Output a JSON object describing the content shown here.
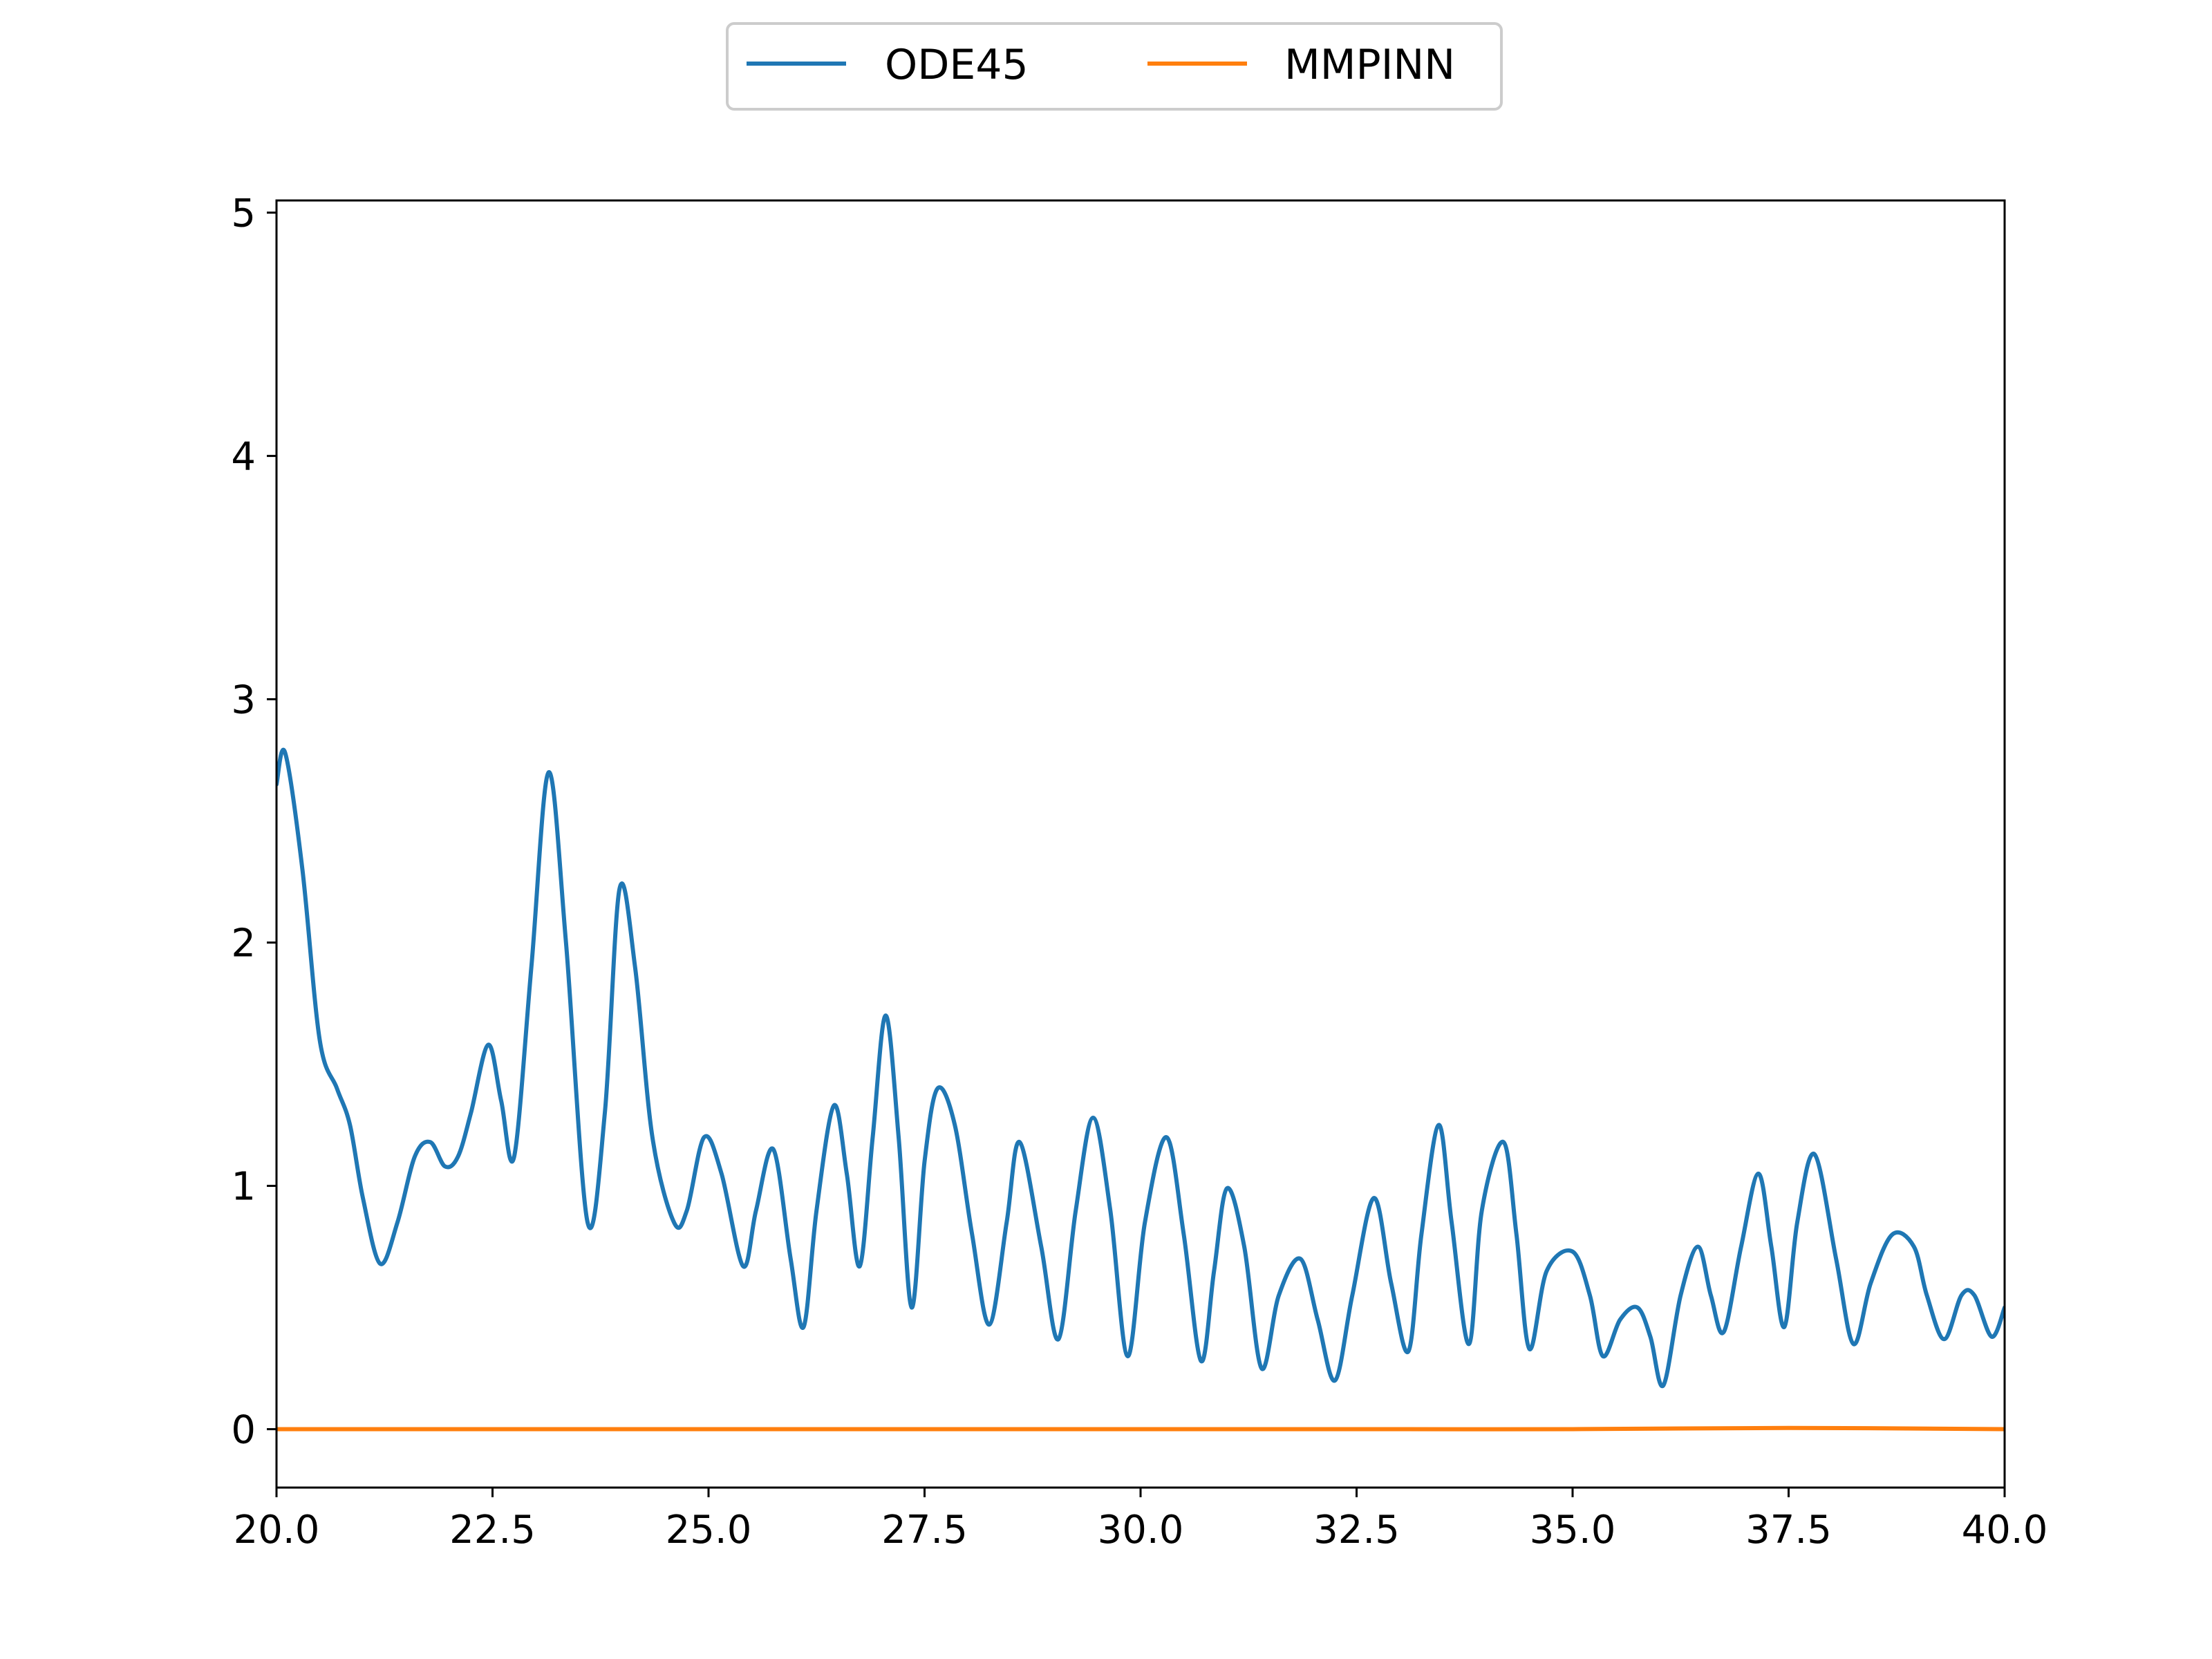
{
  "chart_data": {
    "type": "line",
    "title": "",
    "xlabel": "",
    "ylabel": "",
    "xlim": [
      20.0,
      40.0
    ],
    "ylim": [
      -0.24,
      5.05
    ],
    "x_ticks": [
      20.0,
      22.5,
      25.0,
      27.5,
      30.0,
      32.5,
      35.0,
      37.5,
      40.0
    ],
    "x_tick_labels": [
      "20.0",
      "22.5",
      "25.0",
      "27.5",
      "30.0",
      "32.5",
      "35.0",
      "37.5",
      "40.0"
    ],
    "y_ticks": [
      0,
      1,
      2,
      3,
      4,
      5
    ],
    "y_tick_labels": [
      "0",
      "1",
      "2",
      "3",
      "4",
      "5"
    ],
    "grid": false,
    "legend_position": "top-center-outside",
    "series": [
      {
        "name": "ODE45",
        "color": "#1f77b4",
        "x": [
          20.0,
          20.1,
          20.3,
          20.5,
          20.7,
          20.85,
          21.0,
          21.2,
          21.4,
          21.6,
          21.78,
          21.95,
          22.1,
          22.25,
          22.45,
          22.6,
          22.75,
          22.95,
          23.15,
          23.35,
          23.6,
          23.8,
          23.97,
          24.15,
          24.35,
          24.6,
          24.75,
          24.95,
          25.15,
          25.4,
          25.55,
          25.75,
          25.95,
          26.1,
          26.25,
          26.45,
          26.6,
          26.75,
          26.9,
          27.05,
          27.2,
          27.35,
          27.5,
          27.65,
          27.85,
          28.05,
          28.25,
          28.45,
          28.6,
          28.85,
          29.05,
          29.25,
          29.45,
          29.65,
          29.85,
          30.05,
          30.3,
          30.5,
          30.7,
          30.85,
          31.0,
          31.2,
          31.4,
          31.6,
          31.85,
          32.05,
          32.25,
          32.45,
          32.7,
          32.9,
          33.1,
          33.25,
          33.45,
          33.6,
          33.8,
          33.95,
          34.2,
          34.35,
          34.5,
          34.7,
          35.0,
          35.2,
          35.35,
          35.55,
          35.75,
          35.9,
          36.05,
          36.25,
          36.45,
          36.6,
          36.75,
          36.95,
          37.15,
          37.3,
          37.45,
          37.6,
          37.8,
          38.05,
          38.25,
          38.45,
          38.7,
          38.95,
          39.1,
          39.3,
          39.5,
          39.65,
          39.85,
          40.0
        ],
        "y": [
          2.65,
          2.78,
          2.3,
          1.6,
          1.4,
          1.25,
          0.95,
          0.68,
          0.85,
          1.12,
          1.18,
          1.08,
          1.12,
          1.3,
          1.58,
          1.35,
          1.12,
          1.9,
          2.7,
          2.0,
          0.85,
          1.3,
          2.22,
          1.9,
          1.2,
          0.85,
          0.9,
          1.2,
          1.05,
          0.67,
          0.9,
          1.15,
          0.7,
          0.42,
          0.9,
          1.33,
          1.05,
          0.67,
          1.2,
          1.7,
          1.2,
          0.5,
          1.1,
          1.4,
          1.25,
          0.8,
          0.43,
          0.85,
          1.18,
          0.75,
          0.37,
          0.9,
          1.28,
          0.9,
          0.3,
          0.85,
          1.2,
          0.8,
          0.28,
          0.65,
          0.99,
          0.75,
          0.25,
          0.55,
          0.7,
          0.45,
          0.2,
          0.55,
          0.95,
          0.6,
          0.32,
          0.8,
          1.25,
          0.85,
          0.35,
          0.9,
          1.18,
          0.8,
          0.33,
          0.65,
          0.73,
          0.55,
          0.3,
          0.45,
          0.5,
          0.38,
          0.18,
          0.55,
          0.75,
          0.55,
          0.4,
          0.75,
          1.05,
          0.75,
          0.42,
          0.85,
          1.13,
          0.7,
          0.35,
          0.6,
          0.8,
          0.75,
          0.55,
          0.37,
          0.55,
          0.55,
          0.38,
          0.5
        ]
      },
      {
        "name": "MMPINN",
        "color": "#ff7f0e",
        "x": [
          20.0,
          22.5,
          25.0,
          27.5,
          30.0,
          32.5,
          35.0,
          37.5,
          40.0
        ],
        "y": [
          0.0,
          0.0,
          0.0,
          0.0,
          0.0,
          0.0,
          0.0,
          0.005,
          0.0
        ]
      }
    ]
  }
}
